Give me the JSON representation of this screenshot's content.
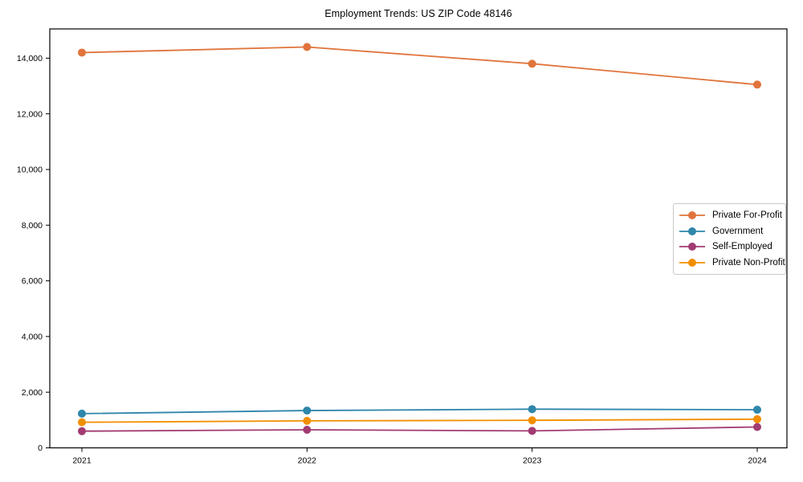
{
  "chart_data": {
    "type": "line",
    "title": "Employment Trends: US ZIP Code 48146",
    "x": [
      "2021",
      "2022",
      "2023",
      "2024"
    ],
    "series": [
      {
        "name": "Private For-Profit",
        "color": "#E0743C",
        "values": [
          14200,
          14400,
          13800,
          13050
        ]
      },
      {
        "name": "Government",
        "color": "#2E86AB",
        "values": [
          1230,
          1340,
          1390,
          1370
        ]
      },
      {
        "name": "Self-Employed",
        "color": "#A23B72",
        "values": [
          600,
          650,
          610,
          750
        ]
      },
      {
        "name": "Private Non-Profit",
        "color": "#F18F01",
        "values": [
          920,
          970,
          990,
          1030
        ]
      }
    ],
    "xlabel": "",
    "ylabel": "",
    "ylim": [
      0,
      15050
    ],
    "yticks": [
      0,
      2000,
      4000,
      6000,
      8000,
      10000,
      12000,
      14000
    ],
    "grid": false,
    "legend_position": "center right",
    "marker": "circle",
    "frame": "full-box"
  }
}
